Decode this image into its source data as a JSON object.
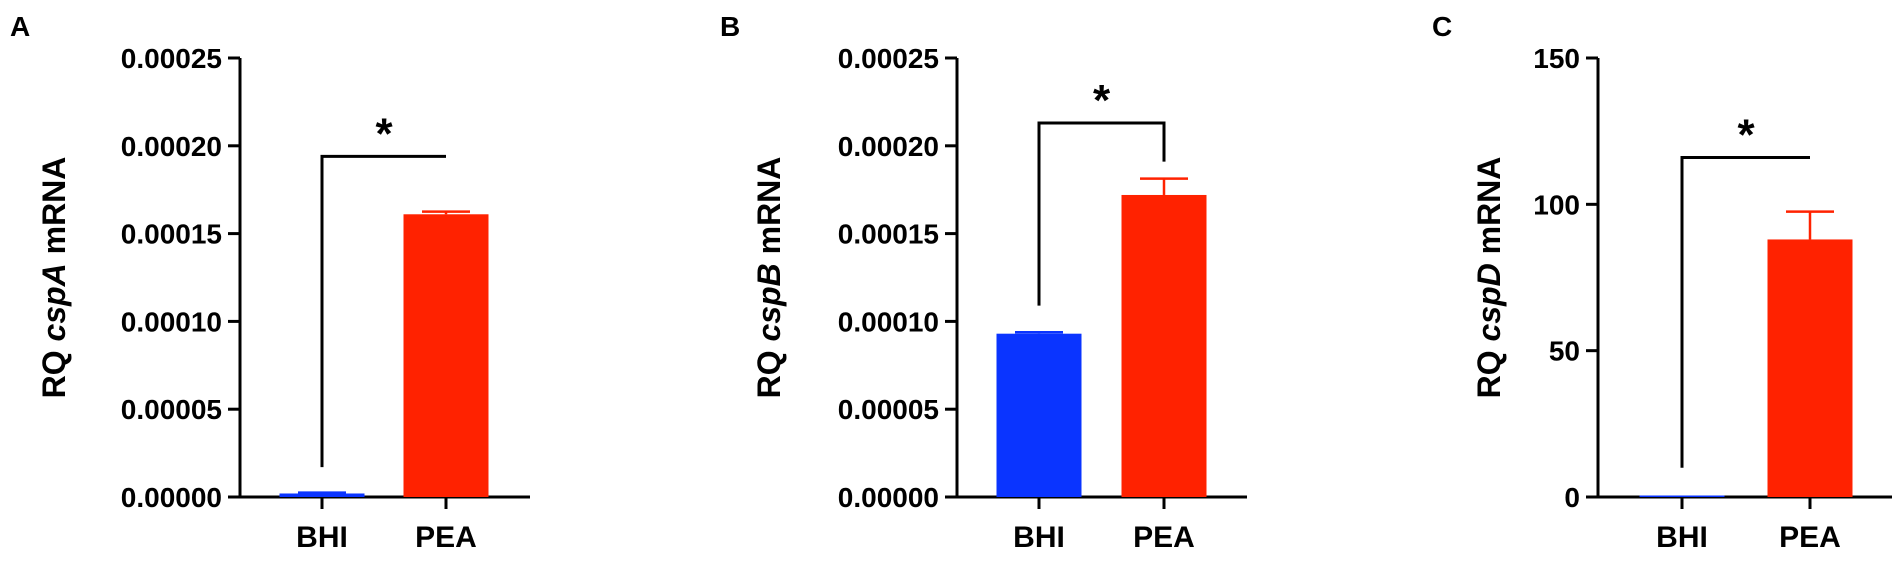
{
  "chart_data": [
    {
      "type": "bar",
      "panel": "A",
      "gene": "cspA",
      "ylabel_prefix": "RQ",
      "ylabel_suffix": "mRNA",
      "categories": [
        "BHI",
        "PEA"
      ],
      "values": [
        2e-06,
        0.000161
      ],
      "errors": [
        5e-07,
        1.5e-06
      ],
      "colors": [
        "#0a34ff",
        "#ff2200"
      ],
      "ylim": [
        0,
        0.00025
      ],
      "yticks": [
        0,
        5e-05,
        0.0001,
        0.00015,
        0.0002,
        0.00025
      ],
      "ytick_labels": [
        "0.00000",
        "0.00005",
        "0.00010",
        "0.00015",
        "0.00020",
        "0.00025"
      ],
      "significance": "*",
      "bracket": {
        "left_bottom": 1.7e-05,
        "right_bottom": 0.000194,
        "top": 0.000194
      }
    },
    {
      "type": "bar",
      "panel": "B",
      "gene": "cspB",
      "ylabel_prefix": "RQ",
      "ylabel_suffix": "mRNA",
      "categories": [
        "BHI",
        "PEA"
      ],
      "values": [
        9.3e-05,
        0.000172
      ],
      "errors": [
        8e-07,
        9.3e-06
      ],
      "colors": [
        "#0a34ff",
        "#ff2200"
      ],
      "ylim": [
        0,
        0.00025
      ],
      "yticks": [
        0,
        5e-05,
        0.0001,
        0.00015,
        0.0002,
        0.00025
      ],
      "ytick_labels": [
        "0.00000",
        "0.00005",
        "0.00010",
        "0.00015",
        "0.00020",
        "0.00025"
      ],
      "significance": "*",
      "bracket": {
        "left_bottom": 0.000109,
        "right_bottom": 0.000191,
        "top": 0.000213
      }
    },
    {
      "type": "bar",
      "panel": "C",
      "gene": "cspD",
      "ylabel_prefix": "RQ",
      "ylabel_suffix": "mRNA",
      "categories": [
        "BHI",
        "PEA"
      ],
      "values": [
        0.2,
        88
      ],
      "errors": [
        0,
        9.5
      ],
      "colors": [
        "#0a34ff",
        "#ff2200"
      ],
      "ylim": [
        0,
        150
      ],
      "yticks": [
        0,
        50,
        100,
        150
      ],
      "ytick_labels": [
        "0",
        "50",
        "100",
        "150"
      ],
      "significance": "*",
      "bracket": {
        "left_bottom": 10,
        "right_bottom": 116,
        "top": 116
      }
    }
  ]
}
